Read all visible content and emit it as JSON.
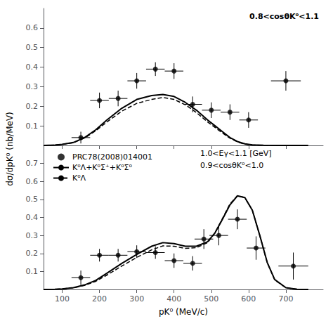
{
  "chart_data": [
    {
      "type": "scatter",
      "annotation": "0.8<cosθK⁰<1.1",
      "ylabel": "dσ/dpK⁰ (nb/MeV)",
      "xlim": [
        50,
        800
      ],
      "xticks": [
        100,
        200,
        300,
        400,
        500,
        600,
        700
      ],
      "ylim": [
        0.0,
        0.7
      ],
      "yticks": [
        0.1,
        0.2,
        0.3,
        0.4,
        0.5,
        0.6
      ],
      "grid": false,
      "tick_labels": "y",
      "series": [
        {
          "type": "scatter",
          "marker": "circle",
          "color": "#000000",
          "x": [
            150,
            200,
            250,
            300,
            350,
            400,
            450,
            500,
            550,
            600
          ],
          "values": [
            0.04,
            0.23,
            0.24,
            0.33,
            0.39,
            0.38,
            0.21,
            0.18,
            0.17,
            0.13
          ],
          "xerr": [
            25,
            25,
            25,
            25,
            25,
            25,
            25,
            25,
            25,
            25
          ],
          "yerr": [
            0.03,
            0.04,
            0.04,
            0.04,
            0.035,
            0.04,
            0.04,
            0.04,
            0.04,
            0.04
          ]
        },
        {
          "type": "scatter",
          "marker": "circle",
          "color": "#000000",
          "x": [
            700
          ],
          "values": [
            0.33
          ],
          "xerr": [
            40
          ],
          "yerr": [
            0.05
          ]
        },
        {
          "type": "line",
          "line_style": "solid",
          "color": "#000000",
          "x": [
            50,
            80,
            100,
            130,
            160,
            190,
            220,
            260,
            300,
            340,
            370,
            400,
            430,
            460,
            490,
            510,
            530,
            550,
            570,
            590,
            610,
            640,
            680,
            720,
            760
          ],
          "values": [
            0.0,
            0.002,
            0.005,
            0.015,
            0.04,
            0.08,
            0.13,
            0.19,
            0.235,
            0.255,
            0.26,
            0.25,
            0.22,
            0.18,
            0.13,
            0.1,
            0.07,
            0.04,
            0.02,
            0.008,
            0.003,
            0.001,
            0.0003,
            0.0001,
            0.0
          ]
        },
        {
          "type": "line",
          "line_style": "dashed",
          "color": "#000000",
          "x": [
            50,
            80,
            100,
            130,
            160,
            190,
            220,
            260,
            300,
            340,
            370,
            400,
            430,
            460,
            490,
            510,
            530,
            550,
            570,
            590,
            610,
            640,
            680,
            720,
            760
          ],
          "values": [
            0.0,
            0.002,
            0.005,
            0.014,
            0.038,
            0.075,
            0.12,
            0.175,
            0.215,
            0.235,
            0.245,
            0.235,
            0.208,
            0.168,
            0.12,
            0.092,
            0.063,
            0.037,
            0.018,
            0.006,
            0.002,
            0.0005,
            0.0001,
            0.0001,
            0.0
          ]
        }
      ]
    },
    {
      "type": "scatter",
      "annotations": [
        "1.0<Eγ<1.1 [GeV]",
        "0.9<cosθK⁰<1.0"
      ],
      "xlabel": "pK⁰ (MeV/c)",
      "xlim": [
        50,
        800
      ],
      "xticks": [
        100,
        200,
        300,
        400,
        500,
        600,
        700
      ],
      "ylim": [
        0.0,
        0.8
      ],
      "yticks": [
        0.1,
        0.2,
        0.3,
        0.4,
        0.5,
        0.6,
        0.7
      ],
      "grid": false,
      "legend": "upper left",
      "series": [
        {
          "name": "PRC78(2008)014001",
          "type": "scatter",
          "marker": "circle",
          "color": "#000000",
          "x": [
            150,
            200,
            250,
            300,
            350,
            400,
            450,
            480,
            520,
            570,
            620
          ],
          "values": [
            0.065,
            0.19,
            0.19,
            0.21,
            0.205,
            0.16,
            0.145,
            0.28,
            0.3,
            0.39,
            0.23
          ],
          "xerr": [
            25,
            25,
            25,
            25,
            25,
            25,
            25,
            25,
            25,
            25,
            25
          ],
          "yerr": [
            0.04,
            0.035,
            0.035,
            0.035,
            0.035,
            0.04,
            0.04,
            0.055,
            0.055,
            0.055,
            0.065
          ]
        },
        {
          "type": "scatter",
          "marker": "circle",
          "color": "#000000",
          "x": [
            720
          ],
          "values": [
            0.13
          ],
          "xerr": [
            40
          ],
          "yerr": [
            0.075
          ]
        },
        {
          "name": "K⁰Λ+K⁰Σ⁺+K⁰Σ⁰",
          "type": "line",
          "line_style": "solid",
          "color": "#000000",
          "x": [
            50,
            80,
            100,
            130,
            160,
            190,
            220,
            260,
            300,
            340,
            370,
            400,
            430,
            460,
            490,
            510,
            530,
            550,
            570,
            590,
            610,
            630,
            650,
            670,
            700,
            730,
            760
          ],
          "values": [
            0.0,
            0.001,
            0.003,
            0.01,
            0.025,
            0.05,
            0.09,
            0.145,
            0.195,
            0.24,
            0.26,
            0.255,
            0.24,
            0.24,
            0.265,
            0.315,
            0.39,
            0.47,
            0.52,
            0.51,
            0.44,
            0.3,
            0.15,
            0.055,
            0.01,
            0.001,
            0.0
          ]
        },
        {
          "name": "K⁰Λ",
          "type": "line",
          "line_style": "dashed",
          "color": "#000000",
          "x": [
            50,
            80,
            100,
            130,
            160,
            190,
            220,
            260,
            300,
            340,
            370,
            400,
            430,
            460,
            490,
            510,
            530,
            550,
            570,
            590,
            610,
            630,
            650,
            670,
            700,
            730,
            760
          ],
          "values": [
            0.0,
            0.001,
            0.003,
            0.009,
            0.022,
            0.045,
            0.08,
            0.13,
            0.178,
            0.22,
            0.242,
            0.24,
            0.228,
            0.232,
            0.26,
            0.315,
            0.395,
            0.475,
            0.52,
            0.51,
            0.44,
            0.3,
            0.148,
            0.053,
            0.009,
            0.001,
            0.0
          ]
        }
      ]
    }
  ]
}
